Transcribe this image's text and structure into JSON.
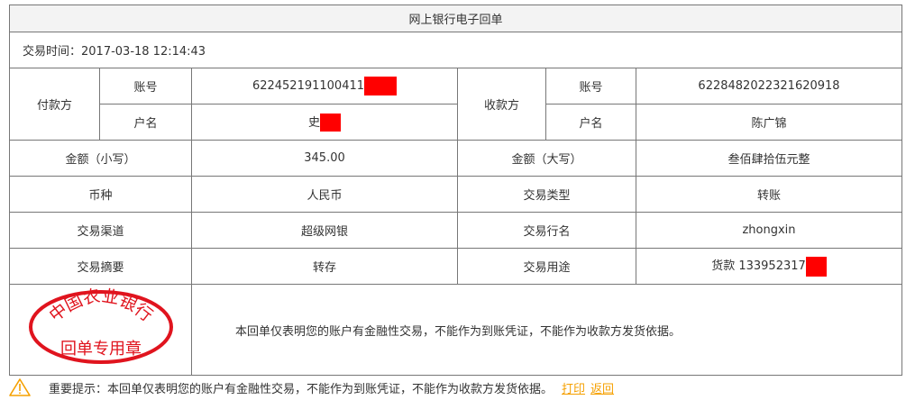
{
  "title": "网上银行电子回单",
  "time": "交易时间：2017-03-18 12:14:43",
  "payer": {
    "label": "付款方",
    "account_label": "账号",
    "account": "622452191100411",
    "name_label": "户名",
    "name": "史"
  },
  "payee": {
    "label": "收款方",
    "account_label": "账号",
    "account": "6228482022321620918",
    "name_label": "户名",
    "name": "陈广锦"
  },
  "rows": [
    {
      "l1": "金额（小写）",
      "v1": "345.00",
      "l2": "金额（大写）",
      "v2": "叁佰肆拾伍元整"
    },
    {
      "l1": "币种",
      "v1": "人民币",
      "l2": "交易类型",
      "v2": "转账"
    },
    {
      "l1": "交易渠道",
      "v1": "超级网银",
      "l2": "交易行名",
      "v2": "zhongxin"
    },
    {
      "l1": "交易摘要",
      "v1": "转存",
      "l2": "交易用途",
      "v2": "货款 133952317"
    }
  ],
  "stamp": {
    "line1": "中国农业银行",
    "line2": "回单专用章",
    "color": "#e0141e"
  },
  "note": "本回单仅表明您的账户有金融性交易，不能作为到账凭证，不能作为收款方发货依据。",
  "footer": {
    "text": "重要提示：本回单仅表明您的账户有金融性交易，不能作为到账凭证，不能作为收款方发货依据。",
    "print": "打印",
    "back": "返回",
    "icon": "warning-icon",
    "link_color": "#f5a000"
  }
}
